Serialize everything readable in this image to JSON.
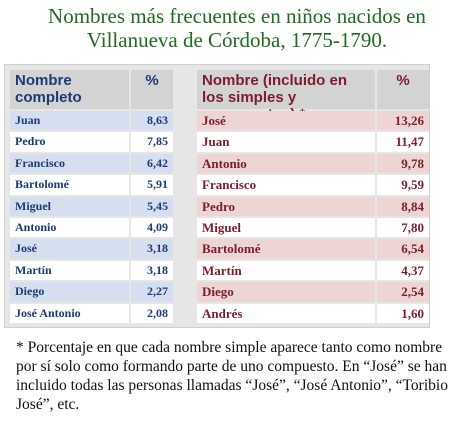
{
  "title": {
    "line1": "Nombres más frecuentes en niños nacidos en",
    "line2": "Villanueva de Córdoba, 1775-1790."
  },
  "left_table": {
    "header_name": "Nombre completo",
    "header_pct": "%",
    "rows": [
      {
        "name": "Juan",
        "pct": "8,63"
      },
      {
        "name": "Pedro",
        "pct": "7,85"
      },
      {
        "name": "Francisco",
        "pct": "6,42"
      },
      {
        "name": "Bartolomé",
        "pct": "5,91"
      },
      {
        "name": "Miguel",
        "pct": "5,45"
      },
      {
        "name": "Antonio",
        "pct": "4,09"
      },
      {
        "name": "José",
        "pct": "3,18"
      },
      {
        "name": "Martín",
        "pct": "3,18"
      },
      {
        "name": "Diego",
        "pct": "2,27"
      },
      {
        "name": "José Antonio",
        "pct": "2,08"
      }
    ]
  },
  "right_table": {
    "header_name": "Nombre (incluido en los simples y compuestos) *",
    "header_pct": "%",
    "rows": [
      {
        "name": "José",
        "pct": "13,26"
      },
      {
        "name": "Juan",
        "pct": "11,47"
      },
      {
        "name": "Antonio",
        "pct": "9,78"
      },
      {
        "name": "Francisco",
        "pct": "9,59"
      },
      {
        "name": "Pedro",
        "pct": "8,84"
      },
      {
        "name": "Miguel",
        "pct": "7,80"
      },
      {
        "name": "Bartolomé",
        "pct": "6,54"
      },
      {
        "name": "Martín",
        "pct": "4,37"
      },
      {
        "name": "Diego",
        "pct": "2,54"
      },
      {
        "name": "Andrés",
        "pct": "1,60"
      }
    ]
  },
  "footnote": "* Porcentaje en que cada nombre simple aparece tanto como nombre por sí solo como formando parte de uno compuesto. En “José” se han incluido todas las personas llamadas “José”, “José Antonio”, “Toribio José”, etc.",
  "colors": {
    "title": "#1f6b1f",
    "left_text": "#1d3a74",
    "right_text": "#7b1d2e",
    "left_stripe": "#d6dff0",
    "right_stripe": "#ecd5d2",
    "header_bg": "#d3d3d3"
  }
}
